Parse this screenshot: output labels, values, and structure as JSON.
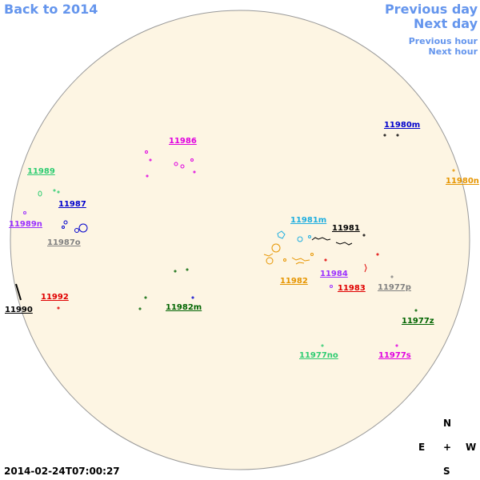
{
  "nav": {
    "back": "Back to 2014",
    "previous_day": "Previous day",
    "next_day": "Next day",
    "previous_hour": "Previous hour",
    "next_hour": "Next hour"
  },
  "regions": [
    "11980m",
    "11986",
    "11989",
    "11980n",
    "11987",
    "11981m",
    "11981",
    "11989n",
    "11987o",
    "11982",
    "11984",
    "11983",
    "11977p",
    "11992",
    "11990",
    "11982m",
    "11977z",
    "11977no",
    "11977s"
  ],
  "compass": {
    "north": "N",
    "east": "E",
    "center": "+",
    "west": "W",
    "south": "S"
  },
  "timestamp": "2014-02-24T07:00:27"
}
